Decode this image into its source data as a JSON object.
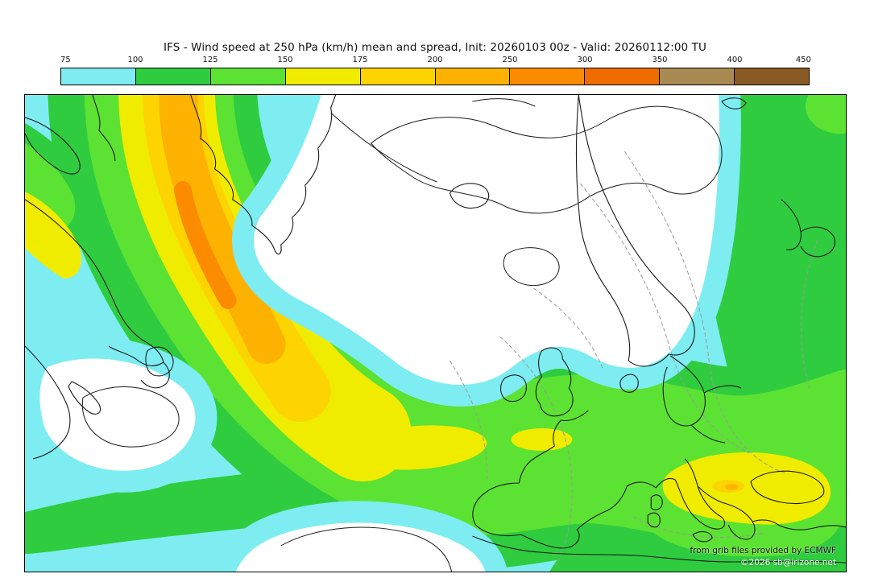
{
  "header": {
    "title": "IFS - Wind speed at 250 hPa (km/h) mean and spread, Init: 20260103 00z - Valid: 20260112:00 TU"
  },
  "colorbar": {
    "tick_labels": [
      "75",
      "100",
      "125",
      "150",
      "175",
      "200",
      "250",
      "300",
      "350",
      "400",
      "450"
    ],
    "segment_colors": [
      "#7dedf2",
      "#2fcc3f",
      "#5ce232",
      "#f0ec00",
      "#fdd400",
      "#fdb200",
      "#fb8c00",
      "#ef6c00",
      "#a98a53",
      "#8a5a26"
    ]
  },
  "map": {
    "low_wind_color": "#ffffff",
    "coastline_color": "#1a1a1a",
    "isotach_contour_color": "#1a1a1a",
    "spread_contour_color": "#9a9a9a",
    "border_color": "#000000",
    "credits_line1": "from grib files provided by ECMWF",
    "credits_line2": "©2026 sb@irizone.net"
  },
  "chart_data": {
    "type": "heatmap",
    "title": "IFS - Wind speed at 250 hPa (km/h) mean and spread",
    "init": "20260103 00z",
    "valid": "20260112:00 TU",
    "units": "km/h",
    "levels": [
      75,
      100,
      125,
      150,
      175,
      200,
      250,
      300,
      350,
      400,
      450
    ],
    "palette": [
      "#7dedf2",
      "#2fcc3f",
      "#5ce232",
      "#f0ec00",
      "#fdd400",
      "#fdb200",
      "#fb8c00",
      "#ef6c00",
      "#a98a53",
      "#8a5a26"
    ],
    "legend_position": "top",
    "features": [
      {
        "name": "jet-maximum",
        "location": "western North Atlantic",
        "approx_value_kmh": "250-300"
      },
      {
        "name": "southern-band-maximum",
        "location": "central Atlantic",
        "approx_value_kmh": "150-200"
      },
      {
        "name": "secondary-maximum",
        "location": "southeastern Europe / Black Sea",
        "approx_value_kmh": "150-200"
      },
      {
        "name": "low-wind-region",
        "location": "Greenland / Arctic / Scandinavia",
        "approx_value_kmh": "<75"
      },
      {
        "name": "low-wind-region",
        "location": "subtropical western Atlantic",
        "approx_value_kmh": "<75"
      }
    ]
  }
}
